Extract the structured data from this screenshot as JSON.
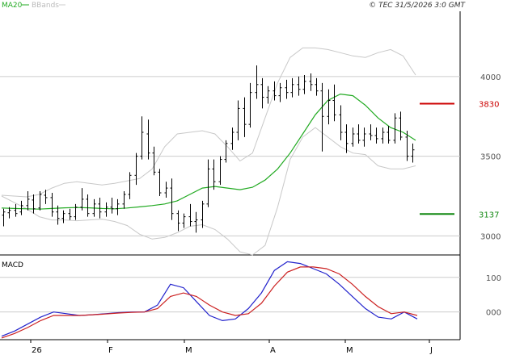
{
  "header": {
    "legend_ma": "MA20",
    "legend_bb": "BBands",
    "copyright": "© TEC 31/5/2026 3:0 GMT"
  },
  "macd_title": "MACD",
  "colors": {
    "bar": "#000000",
    "ma": "#22aa22",
    "bands": "#c8c8c8",
    "macd": "#2222cc",
    "signal": "#cc2222",
    "resistance": "#cc0000",
    "support": "#118811",
    "grid": "#cccccc"
  },
  "chart_data": [
    {
      "type": "ohlc",
      "title": "",
      "x_labels": [
        "26",
        "F",
        "M",
        "A",
        "M",
        "J"
      ],
      "y_ticks": [
        3000,
        3500,
        4000
      ],
      "ylim": [
        2880,
        4410
      ],
      "grid": true,
      "series": [
        {
          "name": "MA20",
          "values": [
            3175,
            3172,
            3170,
            3168,
            3172,
            3176,
            3178,
            3176,
            3172,
            3170,
            3175,
            3182,
            3190,
            3200,
            3220,
            3260,
            3300,
            3310,
            3300,
            3290,
            3305,
            3350,
            3420,
            3520,
            3640,
            3760,
            3850,
            3890,
            3880,
            3820,
            3740,
            3680,
            3650,
            3600
          ]
        },
        {
          "name": "BBands",
          "upper": [
            3255,
            3250,
            3245,
            3260,
            3300,
            3330,
            3340,
            3330,
            3320,
            3330,
            3345,
            3360,
            3420,
            3560,
            3640,
            3650,
            3660,
            3640,
            3560,
            3470,
            3520,
            3740,
            3960,
            4120,
            4180,
            4180,
            4170,
            4150,
            4130,
            4120,
            4150,
            4170,
            4130,
            4010
          ],
          "lower": [
            3250,
            3210,
            3170,
            3120,
            3100,
            3100,
            3095,
            3100,
            3105,
            3090,
            3065,
            3010,
            2980,
            2990,
            3020,
            3060,
            3070,
            3040,
            2980,
            2900,
            2880,
            2940,
            3180,
            3480,
            3620,
            3680,
            3620,
            3560,
            3520,
            3510,
            3440,
            3420,
            3420,
            3440
          ]
        }
      ],
      "ohlc": [
        {
          "o": 3130,
          "h": 3170,
          "l": 3060,
          "c": 3150
        },
        {
          "o": 3145,
          "h": 3180,
          "l": 3110,
          "c": 3160
        },
        {
          "o": 3160,
          "h": 3200,
          "l": 3120,
          "c": 3140
        },
        {
          "o": 3150,
          "h": 3220,
          "l": 3130,
          "c": 3190
        },
        {
          "o": 3190,
          "h": 3280,
          "l": 3160,
          "c": 3230
        },
        {
          "o": 3225,
          "h": 3260,
          "l": 3140,
          "c": 3170
        },
        {
          "o": 3175,
          "h": 3280,
          "l": 3160,
          "c": 3260
        },
        {
          "o": 3255,
          "h": 3290,
          "l": 3200,
          "c": 3240
        },
        {
          "o": 3240,
          "h": 3270,
          "l": 3120,
          "c": 3150
        },
        {
          "o": 3150,
          "h": 3190,
          "l": 3070,
          "c": 3110
        },
        {
          "o": 3110,
          "h": 3160,
          "l": 3080,
          "c": 3140
        },
        {
          "o": 3140,
          "h": 3170,
          "l": 3100,
          "c": 3120
        },
        {
          "o": 3120,
          "h": 3200,
          "l": 3100,
          "c": 3180
        },
        {
          "o": 3180,
          "h": 3300,
          "l": 3160,
          "c": 3230
        },
        {
          "o": 3230,
          "h": 3260,
          "l": 3120,
          "c": 3140
        },
        {
          "o": 3140,
          "h": 3230,
          "l": 3120,
          "c": 3200
        },
        {
          "o": 3200,
          "h": 3240,
          "l": 3110,
          "c": 3150
        },
        {
          "o": 3150,
          "h": 3210,
          "l": 3120,
          "c": 3180
        },
        {
          "o": 3180,
          "h": 3240,
          "l": 3140,
          "c": 3170
        },
        {
          "o": 3170,
          "h": 3230,
          "l": 3130,
          "c": 3200
        },
        {
          "o": 3200,
          "h": 3280,
          "l": 3170,
          "c": 3260
        },
        {
          "o": 3260,
          "h": 3400,
          "l": 3230,
          "c": 3380
        },
        {
          "o": 3380,
          "h": 3520,
          "l": 3320,
          "c": 3500
        },
        {
          "o": 3500,
          "h": 3750,
          "l": 3480,
          "c": 3650
        },
        {
          "o": 3640,
          "h": 3730,
          "l": 3480,
          "c": 3520
        },
        {
          "o": 3520,
          "h": 3560,
          "l": 3380,
          "c": 3400
        },
        {
          "o": 3400,
          "h": 3420,
          "l": 3250,
          "c": 3270
        },
        {
          "o": 3270,
          "h": 3340,
          "l": 3240,
          "c": 3300
        },
        {
          "o": 3300,
          "h": 3360,
          "l": 3100,
          "c": 3140
        },
        {
          "o": 3140,
          "h": 3160,
          "l": 3030,
          "c": 3080
        },
        {
          "o": 3080,
          "h": 3140,
          "l": 3050,
          "c": 3120
        },
        {
          "o": 3120,
          "h": 3200,
          "l": 3060,
          "c": 3090
        },
        {
          "o": 3090,
          "h": 3150,
          "l": 3020,
          "c": 3100
        },
        {
          "o": 3100,
          "h": 3220,
          "l": 3050,
          "c": 3200
        },
        {
          "o": 3200,
          "h": 3480,
          "l": 3180,
          "c": 3420
        },
        {
          "o": 3420,
          "h": 3480,
          "l": 3290,
          "c": 3340
        },
        {
          "o": 3340,
          "h": 3500,
          "l": 3320,
          "c": 3480
        },
        {
          "o": 3480,
          "h": 3600,
          "l": 3460,
          "c": 3580
        },
        {
          "o": 3580,
          "h": 3680,
          "l": 3540,
          "c": 3650
        },
        {
          "o": 3650,
          "h": 3850,
          "l": 3600,
          "c": 3800
        },
        {
          "o": 3800,
          "h": 3870,
          "l": 3620,
          "c": 3700
        },
        {
          "o": 3700,
          "h": 3960,
          "l": 3680,
          "c": 3900
        },
        {
          "o": 3900,
          "h": 4070,
          "l": 3860,
          "c": 3950
        },
        {
          "o": 3950,
          "h": 3990,
          "l": 3800,
          "c": 3870
        },
        {
          "o": 3870,
          "h": 3940,
          "l": 3830,
          "c": 3910
        },
        {
          "o": 3910,
          "h": 3970,
          "l": 3850,
          "c": 3880
        },
        {
          "o": 3880,
          "h": 3960,
          "l": 3840,
          "c": 3930
        },
        {
          "o": 3930,
          "h": 3980,
          "l": 3860,
          "c": 3900
        },
        {
          "o": 3900,
          "h": 3990,
          "l": 3870,
          "c": 3950
        },
        {
          "o": 3950,
          "h": 4000,
          "l": 3880,
          "c": 3920
        },
        {
          "o": 3920,
          "h": 4010,
          "l": 3890,
          "c": 3970
        },
        {
          "o": 3970,
          "h": 4020,
          "l": 3910,
          "c": 3950
        },
        {
          "o": 3950,
          "h": 3990,
          "l": 3880,
          "c": 3910
        },
        {
          "o": 3910,
          "h": 3960,
          "l": 3530,
          "c": 3750
        },
        {
          "o": 3750,
          "h": 3920,
          "l": 3700,
          "c": 3850
        },
        {
          "o": 3850,
          "h": 3950,
          "l": 3720,
          "c": 3760
        },
        {
          "o": 3760,
          "h": 3820,
          "l": 3600,
          "c": 3650
        },
        {
          "o": 3650,
          "h": 3700,
          "l": 3520,
          "c": 3580
        },
        {
          "o": 3580,
          "h": 3680,
          "l": 3560,
          "c": 3640
        },
        {
          "o": 3640,
          "h": 3700,
          "l": 3580,
          "c": 3600
        },
        {
          "o": 3600,
          "h": 3680,
          "l": 3560,
          "c": 3640
        },
        {
          "o": 3640,
          "h": 3700,
          "l": 3600,
          "c": 3630
        },
        {
          "o": 3630,
          "h": 3680,
          "l": 3580,
          "c": 3610
        },
        {
          "o": 3610,
          "h": 3680,
          "l": 3580,
          "c": 3650
        },
        {
          "o": 3650,
          "h": 3690,
          "l": 3580,
          "c": 3600
        },
        {
          "o": 3600,
          "h": 3770,
          "l": 3580,
          "c": 3740
        },
        {
          "o": 3740,
          "h": 3780,
          "l": 3600,
          "c": 3620
        },
        {
          "o": 3620,
          "h": 3660,
          "l": 3470,
          "c": 3500
        },
        {
          "o": 3500,
          "h": 3580,
          "l": 3460,
          "c": 3540
        }
      ],
      "levels": [
        {
          "label": "3830",
          "value": 3830,
          "kind": "resistance"
        },
        {
          "label": "3137",
          "value": 3137,
          "kind": "support"
        }
      ]
    },
    {
      "type": "line",
      "title": "MACD",
      "y_ticks": [
        0,
        100
      ],
      "ylim": [
        -80,
        160
      ],
      "series": [
        {
          "name": "MACD",
          "values": [
            -70,
            -55,
            -35,
            -15,
            0,
            -5,
            -10,
            -8,
            -5,
            -2,
            0,
            0,
            20,
            80,
            70,
            30,
            -10,
            -25,
            -20,
            10,
            55,
            120,
            145,
            140,
            125,
            110,
            80,
            45,
            10,
            -15,
            -20,
            0,
            -20
          ]
        },
        {
          "name": "Signal",
          "values": [
            -75,
            -62,
            -45,
            -25,
            -10,
            -10,
            -10,
            -8,
            -6,
            -3,
            -1,
            0,
            10,
            45,
            55,
            45,
            20,
            0,
            -10,
            -5,
            25,
            75,
            115,
            130,
            130,
            125,
            110,
            80,
            45,
            15,
            -5,
            0,
            -10
          ]
        }
      ]
    }
  ]
}
